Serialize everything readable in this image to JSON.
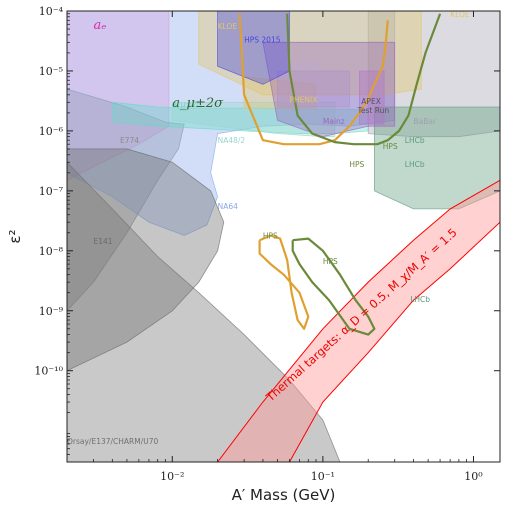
{
  "chart_data": {
    "type": "area",
    "title": "",
    "xlabel": "A′ Mass (GeV)",
    "ylabel": "ε²",
    "x_scale": "log",
    "y_scale": "log",
    "xlim": [
      0.002,
      1.5
    ],
    "ylim": [
      3e-12,
      0.0001
    ],
    "x_ticks": [
      {
        "value": 0.01,
        "label": "10⁻²"
      },
      {
        "value": 0.1,
        "label": "10⁻¹"
      },
      {
        "value": 1,
        "label": "10⁰"
      }
    ],
    "y_ticks": [
      {
        "value": 0.0001,
        "label": "10⁻⁴"
      },
      {
        "value": 1e-05,
        "label": "10⁻⁵"
      },
      {
        "value": 1e-06,
        "label": "10⁻⁶"
      },
      {
        "value": 1e-07,
        "label": "10⁻⁷"
      },
      {
        "value": 1e-08,
        "label": "10⁻⁸"
      },
      {
        "value": 1e-09,
        "label": "10⁻⁹"
      },
      {
        "value": 1e-10,
        "label": "10⁻¹⁰"
      }
    ],
    "grid": false,
    "legend": "none",
    "regions": [
      {
        "name": "a_e",
        "label": "aₑ",
        "color": "#ff99dd",
        "points": [
          [
            0.002,
            0.0001
          ],
          [
            0.0095,
            0.0001
          ],
          [
            0.0095,
            1.2e-06
          ],
          [
            0.006,
            6e-07
          ],
          [
            0.003,
            2.5e-07
          ],
          [
            0.002,
            1.5e-07
          ]
        ]
      },
      {
        "name": "E774",
        "label": "E774",
        "color": "#8a8a8a",
        "points": [
          [
            0.002,
            5e-06
          ],
          [
            0.005,
            2.5e-06
          ],
          [
            0.009,
            1.4e-06
          ],
          [
            0.012,
            1.3e-06
          ],
          [
            0.011,
            5e-07
          ],
          [
            0.008,
            1.5e-07
          ],
          [
            0.005,
            2e-08
          ],
          [
            0.003,
            3e-09
          ],
          [
            0.002,
            1e-09
          ]
        ]
      },
      {
        "name": "NA64",
        "label": "NA64",
        "color": "#8aa8ea",
        "points": [
          [
            0.002,
            0.0001
          ],
          [
            0.3,
            0.0001
          ],
          [
            0.3,
            1.5e-06
          ],
          [
            0.15,
            1.2e-06
          ],
          [
            0.08,
            1.3e-06
          ],
          [
            0.04,
            1.2e-06
          ],
          [
            0.02,
            9e-07
          ],
          [
            0.018,
            2e-07
          ],
          [
            0.02,
            8e-08
          ],
          [
            0.017,
            2.7e-08
          ],
          [
            0.012,
            1.8e-08
          ],
          [
            0.007,
            3e-08
          ],
          [
            0.004,
            8e-08
          ],
          [
            0.002,
            2e-07
          ]
        ]
      },
      {
        "name": "E141",
        "label": "E141",
        "color": "#6a6a6a",
        "points": [
          [
            0.002,
            5e-07
          ],
          [
            0.005,
            5e-07
          ],
          [
            0.01,
            3e-07
          ],
          [
            0.018,
            1e-07
          ],
          [
            0.022,
            3e-08
          ],
          [
            0.02,
            1e-08
          ],
          [
            0.015,
            3e-09
          ],
          [
            0.01,
            1e-09
          ],
          [
            0.005,
            3e-10
          ],
          [
            0.002,
            1e-10
          ]
        ]
      },
      {
        "name": "Orsay/E137/CHARM/U70",
        "label": "Orsay/E137/CHARM/U70",
        "color": "#707070",
        "points": [
          [
            0.002,
            3e-07
          ],
          [
            0.004,
            5e-08
          ],
          [
            0.008,
            8e-09
          ],
          [
            0.015,
            2e-09
          ],
          [
            0.03,
            4e-10
          ],
          [
            0.06,
            7e-11
          ],
          [
            0.1,
            1.5e-11
          ],
          [
            0.13,
            3e-12
          ],
          [
            0.002,
            3e-12
          ]
        ]
      },
      {
        "name": "a_mu_2sigma",
        "label": "a_μ±2σ",
        "color": "#66d9c8",
        "points": [
          [
            0.004,
            3e-06
          ],
          [
            0.008,
            2.5e-06
          ],
          [
            0.015,
            2.4e-06
          ],
          [
            0.03,
            2.4e-06
          ],
          [
            0.08,
            2.3e-06
          ],
          [
            0.15,
            2.3e-06
          ],
          [
            0.2,
            2.2e-06
          ],
          [
            0.2,
            1e-06
          ],
          [
            0.12,
            9e-07
          ],
          [
            0.07,
            9e-07
          ],
          [
            0.03,
            1e-06
          ],
          [
            0.015,
            1.1e-06
          ],
          [
            0.008,
            1.2e-06
          ],
          [
            0.004,
            1.4e-06
          ]
        ]
      },
      {
        "name": "NA48/2",
        "label": "NA48/2",
        "color": "#99d6cc",
        "points": [
          [
            0.01,
            1.5e-06
          ],
          [
            0.02,
            1.2e-06
          ],
          [
            0.05,
            9e-07
          ],
          [
            0.1,
            8e-07
          ],
          [
            0.12,
            8e-07
          ],
          [
            0.12,
            3e-06
          ],
          [
            0.01,
            3e-06
          ]
        ]
      },
      {
        "name": "BaBar",
        "label": "BaBar",
        "color": "#a0a0b0",
        "points": [
          [
            0.2,
            0.0001
          ],
          [
            1.5,
            0.0001
          ],
          [
            1.5,
            1e-06
          ],
          [
            0.8,
            8e-07
          ],
          [
            0.4,
            8e-07
          ],
          [
            0.2,
            9e-07
          ]
        ]
      },
      {
        "name": "LHCb",
        "label": "LHCb",
        "color": "#5a9a7a",
        "points": [
          [
            0.22,
            2.5e-06
          ],
          [
            1.5,
            2.5e-06
          ],
          [
            1.5,
            1e-07
          ],
          [
            0.8,
            5e-08
          ],
          [
            0.4,
            5e-08
          ],
          [
            0.22,
            1e-07
          ]
        ]
      },
      {
        "name": "KLOE",
        "label": "KLOE",
        "color": "#e2c666",
        "points": [
          [
            0.015,
            0.0001
          ],
          [
            0.45,
            0.0001
          ],
          [
            0.45,
            5e-06
          ],
          [
            0.25,
            4e-06
          ],
          [
            0.1,
            4e-06
          ],
          [
            0.04,
            4e-06
          ],
          [
            0.015,
            1.3e-05
          ]
        ]
      },
      {
        "name": "PHENIX",
        "label": "PHENIX",
        "color": "#e2c666",
        "points": [
          [
            0.03,
            8e-06
          ],
          [
            0.09,
            6e-06
          ],
          [
            0.09,
            2.4e-06
          ],
          [
            0.03,
            2.4e-06
          ]
        ]
      },
      {
        "name": "HADES",
        "label": "HADES",
        "color": "#b8a8d8",
        "points": [
          [
            0.05,
            1e-05
          ],
          [
            0.15,
            1e-05
          ],
          [
            0.15,
            2.5e-06
          ],
          [
            0.05,
            2.5e-06
          ]
        ]
      },
      {
        "name": "APEX Test Run",
        "label": "APEX\nTest Run",
        "color": "#c07ad0",
        "points": [
          [
            0.175,
            1e-05
          ],
          [
            0.255,
            1e-05
          ],
          [
            0.255,
            1.3e-06
          ],
          [
            0.175,
            1.3e-06
          ]
        ]
      },
      {
        "name": "Mainz",
        "label": "Mainz",
        "color": "#9966bb",
        "points": [
          [
            0.04,
            3e-05
          ],
          [
            0.3,
            3e-05
          ],
          [
            0.3,
            1.2e-06
          ],
          [
            0.2,
            1.2e-06
          ],
          [
            0.1,
            8e-07
          ],
          [
            0.05,
            1.5e-06
          ]
        ]
      },
      {
        "name": "HPS 2015",
        "label": "HPS 2015",
        "color": "#4444dd",
        "points": [
          [
            0.02,
            0.0001
          ],
          [
            0.06,
            0.0001
          ],
          [
            0.06,
            1e-05
          ],
          [
            0.04,
            6e-06
          ],
          [
            0.02,
            1.2e-05
          ]
        ]
      }
    ],
    "contours": [
      {
        "name": "HPS",
        "label": "HPS",
        "color": "#e0a030",
        "points": [
          [
            0.028,
            9e-05
          ],
          [
            0.03,
            4e-06
          ],
          [
            0.04,
            7e-07
          ],
          [
            0.055,
            6e-07
          ],
          [
            0.075,
            6e-07
          ],
          [
            0.095,
            6e-07
          ],
          [
            0.12,
            7e-07
          ],
          [
            0.15,
            1.2e-06
          ],
          [
            0.18,
            2.2e-06
          ],
          [
            0.2,
            3.5e-06
          ],
          [
            0.22,
            6e-06
          ],
          [
            0.25,
            1.2e-05
          ],
          [
            0.26,
            2.5e-05
          ],
          [
            0.27,
            7e-05
          ]
        ]
      },
      {
        "name": "HPS",
        "label": "HPS",
        "color": "#6a8a3a",
        "points": [
          [
            0.058,
            9e-05
          ],
          [
            0.06,
            1e-05
          ],
          [
            0.068,
            1.8e-06
          ],
          [
            0.085,
            9e-07
          ],
          [
            0.12,
            6.5e-07
          ],
          [
            0.16,
            6e-07
          ],
          [
            0.2,
            6e-07
          ],
          [
            0.23,
            6e-07
          ],
          [
            0.27,
            7e-07
          ],
          [
            0.32,
            1e-06
          ],
          [
            0.37,
            1.8e-06
          ],
          [
            0.42,
            6e-06
          ],
          [
            0.48,
            2e-05
          ],
          [
            0.55,
            5e-05
          ],
          [
            0.6,
            9e-05
          ]
        ]
      },
      {
        "name": "HPS",
        "label": "HPS",
        "color": "#e0a030",
        "points": [
          [
            0.038,
            1.5e-08
          ],
          [
            0.045,
            1.8e-08
          ],
          [
            0.052,
            1.6e-08
          ],
          [
            0.058,
            7e-09
          ],
          [
            0.062,
            2e-09
          ],
          [
            0.068,
            7e-10
          ],
          [
            0.075,
            5e-10
          ],
          [
            0.08,
            8e-10
          ],
          [
            0.07,
            2e-09
          ],
          [
            0.055,
            4e-09
          ],
          [
            0.045,
            6e-09
          ],
          [
            0.038,
            9e-09
          ],
          [
            0.038,
            1.5e-08
          ]
        ]
      },
      {
        "name": "HPS",
        "label": "HPS",
        "color": "#6a8a3a",
        "points": [
          [
            0.063,
            1.5e-08
          ],
          [
            0.08,
            1.6e-08
          ],
          [
            0.1,
            1e-08
          ],
          [
            0.13,
            4e-09
          ],
          [
            0.165,
            1.5e-09
          ],
          [
            0.2,
            8e-10
          ],
          [
            0.22,
            5e-10
          ],
          [
            0.2,
            4e-10
          ],
          [
            0.15,
            5e-10
          ],
          [
            0.11,
            1.5e-09
          ],
          [
            0.085,
            3e-09
          ],
          [
            0.07,
            6e-09
          ],
          [
            0.063,
            1e-08
          ],
          [
            0.063,
            1.5e-08
          ]
        ]
      }
    ],
    "thermal_band": {
      "label": "Thermal targets: α_D = 0.5, M_χ/M_A′ = 1.5",
      "color": "#ff0000",
      "upper": [
        [
          0.02,
          3e-12
        ],
        [
          0.04,
          3e-11
        ],
        [
          0.1,
          5e-10
        ],
        [
          0.2,
          3e-09
        ],
        [
          0.4,
          1.5e-08
        ],
        [
          0.7,
          5e-08
        ],
        [
          1.5,
          1.5e-07
        ]
      ],
      "lower": [
        [
          0.06,
          3e-12
        ],
        [
          0.1,
          3e-11
        ],
        [
          0.2,
          2e-10
        ],
        [
          0.4,
          1.5e-09
        ],
        [
          0.7,
          5e-09
        ],
        [
          1.5,
          3e-08
        ]
      ]
    },
    "annotations": [
      {
        "text": "aₑ",
        "x": 0.003,
        "y": 5e-05
      },
      {
        "text": "a_μ±2σ",
        "x": 0.01,
        "y": 2.5e-06
      },
      {
        "text": "KLOE",
        "x": 0.02,
        "y": 5e-05
      },
      {
        "text": "HPS 2015",
        "x": 0.03,
        "y": 3e-05
      },
      {
        "text": "HADES",
        "x": 0.065,
        "y": 1.1e-05
      },
      {
        "text": "PHENIX",
        "x": 0.06,
        "y": 3e-06
      },
      {
        "text": "APEX",
        "x": 0.18,
        "y": 2.8e-06
      },
      {
        "text": "Test Run",
        "x": 0.17,
        "y": 2e-06
      },
      {
        "text": "Mainz",
        "x": 0.1,
        "y": 1.3e-06
      },
      {
        "text": "BaBar",
        "x": 0.4,
        "y": 1.3e-06
      },
      {
        "text": "LHCb",
        "x": 0.35,
        "y": 6.3e-07
      },
      {
        "text": "NA48/2",
        "x": 0.02,
        "y": 6.3e-07
      },
      {
        "text": "E774",
        "x": 0.0045,
        "y": 6.3e-07
      },
      {
        "text": "NA64",
        "x": 0.02,
        "y": 5e-08
      },
      {
        "text": "E141",
        "x": 0.003,
        "y": 1.3e-08
      },
      {
        "text": "Orsay/E137/CHARM/U70",
        "x": 0.002,
        "y": 6e-12
      },
      {
        "text": "HPS",
        "x": 0.15,
        "y": 2.5e-07
      },
      {
        "text": "HPS",
        "x": 0.25,
        "y": 5e-07
      },
      {
        "text": "HPS",
        "x": 0.04,
        "y": 1.6e-08
      },
      {
        "text": "HPS",
        "x": 0.1,
        "y": 6e-09
      },
      {
        "text": "LHCb",
        "x": 0.38,
        "y": 1.4e-09
      },
      {
        "text": "LHCb",
        "x": 0.35,
        "y": 2.5e-07
      },
      {
        "text": "KLOE",
        "x": 0.7,
        "y": 8e-05
      }
    ]
  }
}
